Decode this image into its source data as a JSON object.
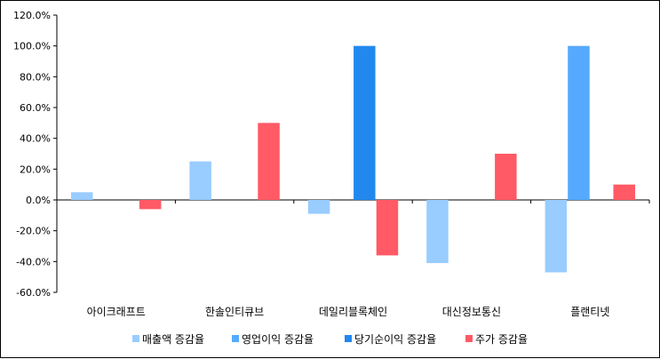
{
  "chart_data": {
    "type": "bar",
    "categories": [
      "아이크래프트",
      "한솔인티큐브",
      "데일리블록체인",
      "대신정보통신",
      "플랜티넷"
    ],
    "series": [
      {
        "name": "매출액 증감율",
        "values": [
          5.0,
          25.0,
          -9.0,
          -41.0,
          -47.0
        ],
        "color": "#99ccff"
      },
      {
        "name": "영업이익 증감율",
        "values": [
          0,
          0,
          0,
          0,
          100.0
        ],
        "color": "#55aaff"
      },
      {
        "name": "당기순이익 증감율",
        "values": [
          0,
          0,
          100.0,
          0,
          0
        ],
        "color": "#2288ee"
      },
      {
        "name": "주가 증감율",
        "values": [
          -6.0,
          50.0,
          -36.0,
          30.0,
          10.0
        ],
        "color": "#ff5a66"
      }
    ],
    "ylim": [
      -60,
      120
    ],
    "yticks": [
      "-60.0%",
      "-40.0%",
      "-20.0%",
      "0.0%",
      "20.0%",
      "40.0%",
      "60.0%",
      "80.0%",
      "100.0%",
      "120.0%"
    ],
    "legend_position": "bottom",
    "grid": false
  }
}
